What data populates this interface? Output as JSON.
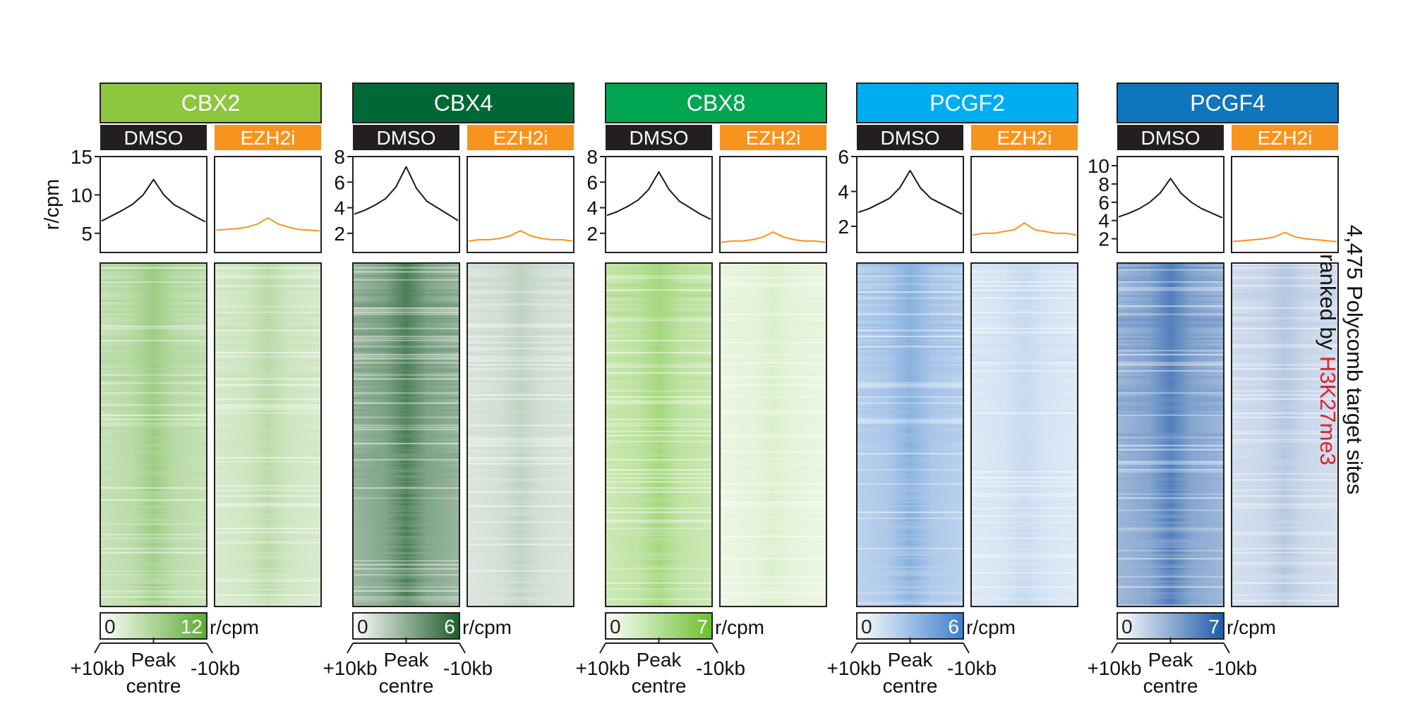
{
  "chart_data": {
    "type": "heatmap",
    "profile_ylabel": "r/cpm",
    "side_label": {
      "line1": "4,475 Polycomb target sites",
      "line2_prefix": "ranked by ",
      "line2_highlight": "H3K27me3",
      "highlight_color": "#e0202a"
    },
    "condition_colors": {
      "DMSO": "#231f20",
      "EZH2i": "#f7941d",
      "EZH2i_line": "#f7941d",
      "DMSO_line": "#1a1a1a"
    },
    "x_axis": {
      "left": "+10kb",
      "center_line1": "Peak",
      "center_line2": "centre",
      "right": "-10kb"
    },
    "colorbar_unit": "r/cpm",
    "panels": [
      {
        "protein": "CBX2",
        "header_color": "#8dc63f",
        "heat_color": "#5aaa2f",
        "conditions": [
          "DMSO",
          "EZH2i"
        ],
        "profile_ylim": [
          2.5,
          15
        ],
        "profile_yticks": [
          5,
          10,
          15
        ],
        "profiles": [
          {
            "condition": "DMSO",
            "x": [
              -10,
              -8,
              -6,
              -4,
              -2,
              0,
              2,
              4,
              6,
              8,
              10
            ],
            "y": [
              6.6,
              7.3,
              8.0,
              8.8,
              10.0,
              12.0,
              10.0,
              8.7,
              8.0,
              7.2,
              6.5
            ]
          },
          {
            "condition": "EZH2i",
            "x": [
              -10,
              -8,
              -6,
              -4,
              -2,
              0,
              2,
              4,
              6,
              8,
              10
            ],
            "y": [
              5.4,
              5.5,
              5.6,
              5.8,
              6.2,
              7.0,
              6.2,
              5.8,
              5.5,
              5.4,
              5.3
            ]
          }
        ],
        "heat_intensity": {
          "DMSO": 0.6,
          "EZH2i": 0.42
        },
        "colorbar": {
          "min": "0",
          "max": "12"
        }
      },
      {
        "protein": "CBX4",
        "header_color": "#006837",
        "heat_color": "#1d5e2a",
        "conditions": [
          "DMSO",
          "EZH2i"
        ],
        "profile_ylim": [
          0.5,
          8
        ],
        "profile_yticks": [
          2,
          4,
          6,
          8
        ],
        "profiles": [
          {
            "condition": "DMSO",
            "x": [
              -10,
              -8,
              -6,
              -4,
              -2,
              0,
              2,
              4,
              6,
              8,
              10
            ],
            "y": [
              3.5,
              3.8,
              4.2,
              4.7,
              5.6,
              7.2,
              5.5,
              4.5,
              4.0,
              3.5,
              3.0
            ]
          },
          {
            "condition": "EZH2i",
            "x": [
              -10,
              -8,
              -6,
              -4,
              -2,
              0,
              2,
              4,
              6,
              8,
              10
            ],
            "y": [
              1.4,
              1.5,
              1.5,
              1.6,
              1.8,
              2.2,
              1.8,
              1.6,
              1.5,
              1.5,
              1.4
            ]
          }
        ],
        "heat_intensity": {
          "DMSO": 0.8,
          "EZH2i": 0.28
        },
        "colorbar": {
          "min": "0",
          "max": "6"
        }
      },
      {
        "protein": "CBX8",
        "header_color": "#00a651",
        "heat_color": "#6cbf2c",
        "conditions": [
          "DMSO",
          "EZH2i"
        ],
        "profile_ylim": [
          0.5,
          8
        ],
        "profile_yticks": [
          2,
          4,
          6,
          8
        ],
        "profiles": [
          {
            "condition": "DMSO",
            "x": [
              -10,
              -8,
              -6,
              -4,
              -2,
              0,
              2,
              4,
              6,
              8,
              10
            ],
            "y": [
              3.4,
              3.7,
              4.1,
              4.6,
              5.4,
              6.8,
              5.4,
              4.5,
              4.0,
              3.5,
              3.1
            ]
          },
          {
            "condition": "EZH2i",
            "x": [
              -10,
              -8,
              -6,
              -4,
              -2,
              0,
              2,
              4,
              6,
              8,
              10
            ],
            "y": [
              1.3,
              1.4,
              1.4,
              1.5,
              1.7,
              2.1,
              1.7,
              1.5,
              1.4,
              1.4,
              1.3
            ]
          }
        ],
        "heat_intensity": {
          "DMSO": 0.62,
          "EZH2i": 0.24
        },
        "colorbar": {
          "min": "0",
          "max": "7"
        }
      },
      {
        "protein": "PCGF2",
        "header_color": "#00aeef",
        "heat_color": "#3d7fcc",
        "conditions": [
          "DMSO",
          "EZH2i"
        ],
        "profile_ylim": [
          0.5,
          6
        ],
        "profile_yticks": [
          2,
          4,
          6
        ],
        "profiles": [
          {
            "condition": "DMSO",
            "x": [
              -10,
              -8,
              -6,
              -4,
              -2,
              0,
              2,
              4,
              6,
              8,
              10
            ],
            "y": [
              2.8,
              3.0,
              3.3,
              3.6,
              4.2,
              5.2,
              4.2,
              3.6,
              3.3,
              3.0,
              2.7
            ]
          },
          {
            "condition": "EZH2i",
            "x": [
              -10,
              -8,
              -6,
              -4,
              -2,
              0,
              2,
              4,
              6,
              8,
              10
            ],
            "y": [
              1.5,
              1.6,
              1.6,
              1.7,
              1.8,
              2.2,
              1.8,
              1.7,
              1.6,
              1.6,
              1.5
            ]
          }
        ],
        "heat_intensity": {
          "DMSO": 0.62,
          "EZH2i": 0.3
        },
        "colorbar": {
          "min": "0",
          "max": "6"
        }
      },
      {
        "protein": "PCGF4",
        "header_color": "#0f75bc",
        "heat_color": "#1f5aa8",
        "conditions": [
          "DMSO",
          "EZH2i"
        ],
        "profile_ylim": [
          0.5,
          11
        ],
        "profile_yticks": [
          2,
          4,
          6,
          8,
          10
        ],
        "profiles": [
          {
            "condition": "DMSO",
            "x": [
              -10,
              -8,
              -6,
              -4,
              -2,
              0,
              2,
              4,
              6,
              8,
              10
            ],
            "y": [
              4.4,
              4.8,
              5.3,
              6.0,
              7.0,
              8.6,
              7.0,
              6.0,
              5.3,
              4.8,
              4.3
            ]
          },
          {
            "condition": "EZH2i",
            "x": [
              -10,
              -8,
              -6,
              -4,
              -2,
              0,
              2,
              4,
              6,
              8,
              10
            ],
            "y": [
              1.7,
              1.8,
              1.9,
              2.0,
              2.2,
              2.7,
              2.2,
              2.0,
              1.9,
              1.8,
              1.7
            ]
          }
        ],
        "heat_intensity": {
          "DMSO": 0.78,
          "EZH2i": 0.34
        },
        "colorbar": {
          "min": "0",
          "max": "7"
        }
      }
    ]
  }
}
